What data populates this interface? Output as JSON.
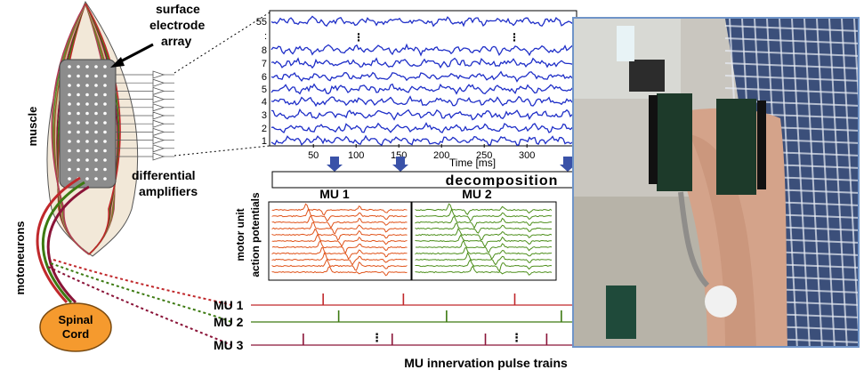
{
  "labels": {
    "muscle": "muscle",
    "motoneurons": "motoneurons",
    "spinal_cord_line1": "Spinal",
    "spinal_cord_line2": "Cord",
    "electrode_line1": "surface",
    "electrode_line2": "electrode",
    "electrode_line3": "array",
    "amplifiers_line1": "differential",
    "amplifiers_line2": "amplifiers",
    "decomposition": "decomposition",
    "mu1_title": "MU 1",
    "mu2_title": "MU 2",
    "map_line1": "motor unit",
    "map_line2": "action potentials",
    "pulse_train_caption": "MU innervation pulse trains",
    "vertical_ellipsis": "⋮"
  },
  "emg_panel": {
    "channels": [
      "55",
      ":",
      "8",
      "7",
      "6",
      "5",
      "4",
      "3",
      "2",
      "1"
    ],
    "x_ticks": [
      "50",
      "100",
      "150",
      "200",
      "250",
      "300"
    ],
    "x_label": "Time [ms]"
  },
  "pulse_trains": [
    {
      "label": "MU 1",
      "color": "#c0282b",
      "spikes_ms": [
        28,
        121,
        250
      ]
    },
    {
      "label": "MU 2",
      "color": "#3d7a12",
      "spikes_ms": [
        46,
        171,
        304
      ]
    },
    {
      "label": "MU 3",
      "color": "#8a1438",
      "spikes_ms": [
        5,
        108,
        216,
        287
      ]
    }
  ],
  "colors": {
    "emg_trace": "#1f2fc8",
    "mu1_map": "#e0531a",
    "mu2_map": "#4e8f1c",
    "spinal_cord": "#f59a2e",
    "electrode_array": "#8c8c8c",
    "photo_border": "#6f94c8"
  }
}
